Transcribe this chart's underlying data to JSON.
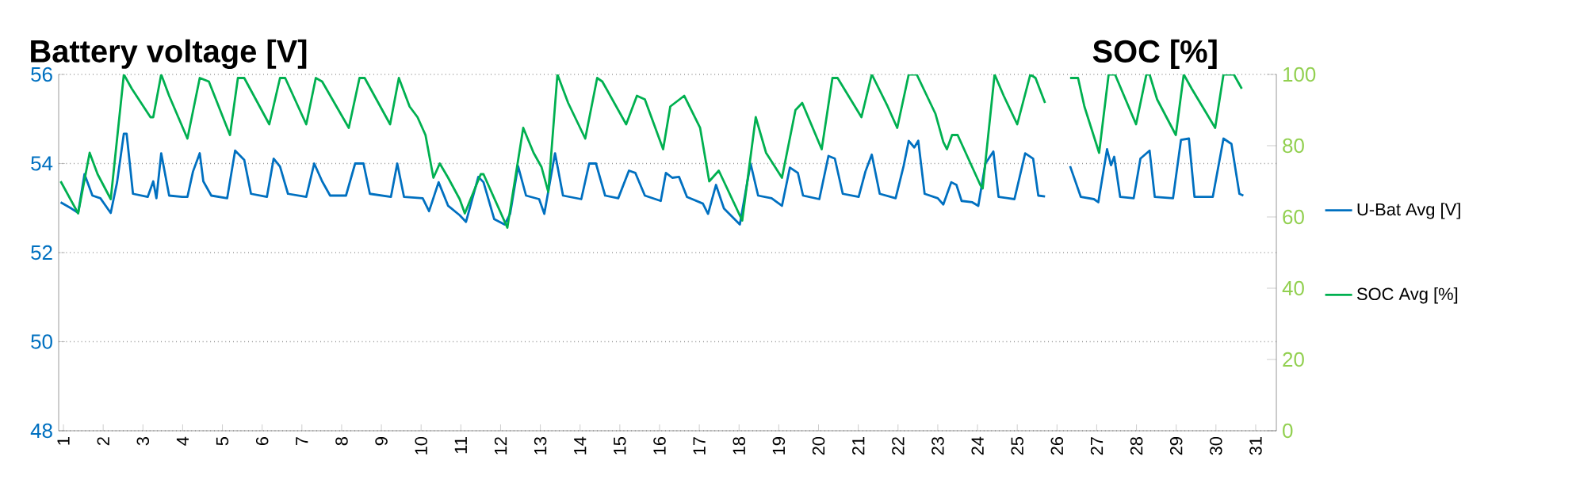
{
  "chart_data": {
    "type": "line",
    "ylabel": "Battery voltage [V]",
    "y2label": "SOC [%]",
    "xlim": [
      0.88,
      31.52
    ],
    "xticks": [
      1,
      2,
      3,
      4,
      5,
      6,
      7,
      8,
      9,
      10,
      11,
      12,
      13,
      14,
      15,
      16,
      17,
      18,
      19,
      20,
      21,
      22,
      23,
      24,
      25,
      26,
      27,
      28,
      29,
      30,
      31
    ],
    "ylim": [
      48,
      56
    ],
    "yticks": [
      48,
      50,
      52,
      54,
      56
    ],
    "y2lim": [
      0,
      100
    ],
    "y2ticks": [
      0,
      20,
      40,
      60,
      80,
      100
    ],
    "grid": "y",
    "legend": "right",
    "series": [
      {
        "name": "U-Bat Avg [V]",
        "color": "#0070c0",
        "x": [
          0.93,
          1.2,
          1.37,
          1.53,
          1.73,
          1.93,
          2.19,
          2.35,
          2.52,
          2.59,
          2.75,
          3.12,
          3.26,
          3.34,
          3.46,
          3.66,
          3.99,
          4.12,
          4.26,
          4.43,
          4.52,
          4.72,
          5.12,
          5.32,
          5.55,
          5.72,
          6.12,
          6.29,
          6.45,
          6.65,
          7.11,
          7.31,
          7.51,
          7.71,
          8.11,
          8.34,
          8.55,
          8.71,
          9.24,
          9.4,
          9.57,
          10.04,
          10.2,
          10.44,
          10.68,
          10.97,
          11.13,
          11.44,
          11.57,
          11.84,
          12.1,
          12.24,
          12.44,
          12.64,
          12.97,
          13.1,
          13.37,
          13.57,
          14.03,
          14.23,
          14.4,
          14.63,
          14.96,
          15.23,
          15.39,
          15.63,
          16.03,
          16.16,
          16.32,
          16.49,
          16.69,
          17.09,
          17.22,
          17.42,
          17.62,
          18.02,
          18.29,
          18.48,
          18.82,
          19.08,
          19.28,
          19.48,
          19.61,
          20.02,
          20.25,
          20.41,
          20.61,
          21.01,
          21.18,
          21.34,
          21.54,
          21.94,
          22.14,
          22.27,
          22.41,
          22.51,
          22.67,
          23.0,
          23.14,
          23.34,
          23.47,
          23.6,
          23.87,
          24.02,
          24.2,
          24.4,
          24.53,
          24.93,
          25.2,
          25.4,
          25.53,
          25.7,
          26.0,
          26.33,
          26.6,
          26.93,
          27.04,
          27.26,
          27.36,
          27.44,
          27.59,
          27.93,
          28.1,
          28.33,
          28.46,
          28.92,
          29.12,
          29.32,
          29.46,
          29.92,
          30.19,
          30.39,
          30.59,
          30.69
        ],
        "values": [
          53.13,
          52.99,
          52.89,
          53.76,
          53.28,
          53.22,
          52.89,
          53.58,
          54.67,
          54.67,
          53.32,
          53.25,
          53.6,
          53.22,
          54.23,
          53.28,
          53.25,
          53.25,
          53.82,
          54.23,
          53.6,
          53.28,
          53.22,
          54.29,
          54.08,
          53.32,
          53.25,
          54.11,
          53.93,
          53.32,
          53.25,
          54.0,
          53.6,
          53.28,
          53.28,
          54.0,
          54.0,
          53.32,
          53.25,
          54.0,
          53.25,
          53.22,
          52.93,
          53.58,
          53.05,
          52.84,
          52.69,
          53.7,
          53.58,
          52.75,
          52.63,
          52.87,
          53.94,
          53.28,
          53.2,
          52.87,
          54.23,
          53.28,
          53.2,
          54.0,
          54.0,
          53.28,
          53.22,
          53.84,
          53.79,
          53.28,
          53.16,
          53.79,
          53.68,
          53.7,
          53.25,
          53.1,
          52.87,
          53.52,
          52.99,
          52.63,
          54.0,
          53.28,
          53.22,
          53.05,
          53.91,
          53.79,
          53.28,
          53.2,
          54.17,
          54.11,
          53.32,
          53.25,
          53.82,
          54.2,
          53.32,
          53.22,
          53.94,
          54.51,
          54.36,
          54.51,
          53.32,
          53.22,
          53.08,
          53.58,
          53.52,
          53.16,
          53.13,
          53.05,
          54.0,
          54.27,
          53.25,
          53.2,
          54.23,
          54.11,
          53.28,
          53.26,
          null,
          53.94,
          53.25,
          53.2,
          53.13,
          54.32,
          53.96,
          54.15,
          53.25,
          53.22,
          54.11,
          54.29,
          53.25,
          53.22,
          54.53,
          54.56,
          53.25,
          53.25,
          54.56,
          54.44,
          53.32,
          53.28
        ]
      },
      {
        "name": "SOC Avg [%]",
        "color": "#00b050",
        "axis": "y2",
        "x": [
          0.93,
          1.37,
          1.66,
          1.86,
          2.19,
          2.52,
          2.72,
          3.19,
          3.26,
          3.46,
          3.66,
          4.12,
          4.43,
          4.66,
          5.19,
          5.39,
          5.55,
          6.18,
          6.45,
          6.58,
          7.11,
          7.35,
          7.51,
          8.18,
          8.45,
          8.58,
          9.22,
          9.44,
          9.71,
          9.91,
          10.11,
          10.31,
          10.47,
          10.68,
          10.97,
          11.1,
          11.5,
          11.57,
          12.17,
          12.57,
          12.83,
          13.03,
          13.2,
          13.43,
          13.7,
          14.13,
          14.43,
          14.56,
          15.16,
          15.43,
          15.63,
          16.09,
          16.27,
          16.62,
          17.02,
          17.25,
          17.49,
          18.08,
          18.42,
          18.68,
          19.08,
          19.42,
          19.59,
          20.08,
          20.35,
          20.48,
          21.08,
          21.34,
          21.74,
          21.98,
          22.27,
          22.47,
          22.94,
          23.14,
          23.23,
          23.36,
          23.5,
          24.07,
          24.13,
          24.43,
          24.66,
          25.0,
          25.33,
          25.46,
          25.7,
          26.0,
          26.33,
          26.53,
          26.69,
          27.06,
          27.3,
          27.46,
          27.99,
          28.25,
          28.33,
          28.52,
          28.99,
          29.19,
          29.39,
          29.98,
          30.19,
          30.45,
          30.65
        ],
        "values": [
          70,
          61,
          78,
          72,
          65,
          100,
          96,
          88,
          88,
          100,
          94,
          82,
          99,
          98,
          83,
          99,
          99,
          86,
          99,
          99,
          86,
          99,
          98,
          85,
          99,
          99,
          86,
          99,
          91,
          88,
          83,
          71,
          75,
          71,
          65,
          61,
          72,
          72,
          57,
          85,
          78,
          74,
          67,
          100,
          92,
          82,
          99,
          98,
          86,
          94,
          93,
          79,
          91,
          94,
          85,
          70,
          73,
          59,
          88,
          78,
          71,
          90,
          92,
          79,
          99,
          99,
          88,
          100,
          91,
          85,
          100,
          100,
          89,
          81,
          79,
          83,
          83,
          69,
          68,
          100,
          94,
          86,
          100,
          99,
          92,
          null,
          99,
          99,
          91,
          78,
          100,
          100,
          86,
          100,
          100,
          93,
          83,
          100,
          96,
          85,
          100,
          100,
          96
        ]
      }
    ]
  }
}
